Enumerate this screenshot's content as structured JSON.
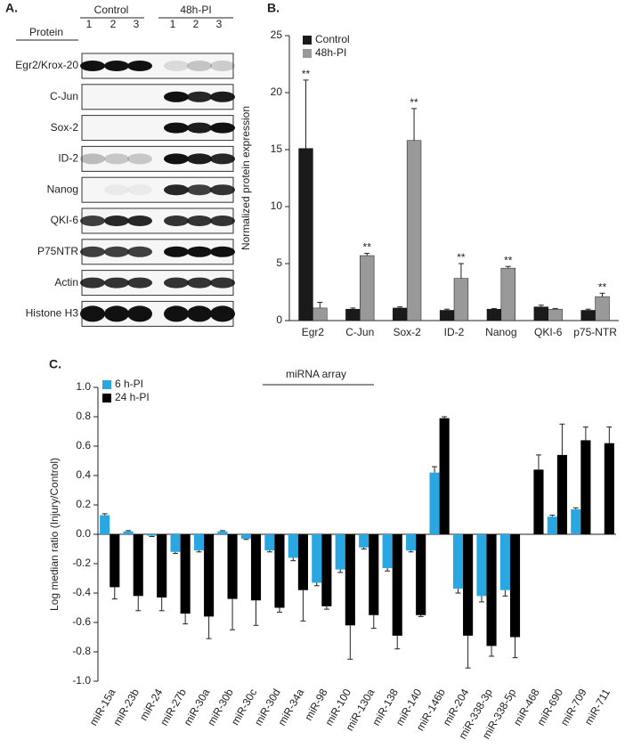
{
  "blot": {
    "panel_label": "A.",
    "groups": [
      "Control",
      "48h-PI"
    ],
    "protein_header": "Protein",
    "lanes": [
      "1",
      "2",
      "3",
      "1",
      "2",
      "3"
    ],
    "proteins": [
      "Egr2/Krox-20",
      "C-Jun",
      "Sox-2",
      "ID-2",
      "Nanog",
      "QKI-6",
      "P75NTR",
      "Actin",
      "Histone H3"
    ]
  },
  "chart_data": [
    {
      "type": "bar",
      "panel_label": "B.",
      "ylabel": "Normalized protein expression",
      "categories": [
        "Egr2",
        "C-Jun",
        "Sox-2",
        "ID-2",
        "Nanog",
        "QKI-6",
        "p75-NTR"
      ],
      "series": [
        {
          "name": "Control",
          "color": "#1a1a1a",
          "values": [
            15.1,
            1.0,
            1.1,
            0.9,
            1.0,
            1.2,
            0.9
          ],
          "errors": [
            6.0,
            0.1,
            0.1,
            0.1,
            0.05,
            0.15,
            0.1
          ],
          "significance": [
            "**",
            null,
            null,
            null,
            null,
            null,
            null
          ]
        },
        {
          "name": "48h-PI",
          "color": "#999999",
          "values": [
            1.1,
            5.7,
            15.8,
            3.7,
            4.6,
            1.0,
            2.1
          ],
          "errors": [
            0.5,
            0.2,
            2.8,
            1.3,
            0.15,
            0.05,
            0.3
          ],
          "significance": [
            null,
            "**",
            "**",
            "**",
            "**",
            null,
            "**"
          ]
        }
      ],
      "ylim": [
        0,
        25
      ],
      "yticks": [
        0,
        5,
        10,
        15,
        20,
        25
      ],
      "legend": "upper left"
    },
    {
      "type": "bar",
      "panel_label": "C.",
      "title": "miRNA array",
      "ylabel": "Log median ratio (Injury/Control)",
      "categories": [
        "miR-15a",
        "miR-23b",
        "miR-24",
        "miR-27b",
        "miR-30a",
        "miR-30b",
        "miR-30c",
        "miR-30d",
        "miR-34a",
        "miR-98",
        "miR-100",
        "miR-130a",
        "miR-138",
        "miR-140",
        "miR-146b",
        "miR-204",
        "miR-338-3p",
        "miR-338-5p",
        "miR-468",
        "miR-690",
        "miR-709",
        "miR-711"
      ],
      "series": [
        {
          "name": "6 h-PI",
          "color": "#2aa7e0",
          "values": [
            0.13,
            0.02,
            -0.01,
            -0.12,
            -0.11,
            0.02,
            -0.03,
            -0.11,
            -0.16,
            -0.33,
            -0.24,
            -0.09,
            -0.23,
            -0.11,
            0.42,
            -0.37,
            -0.42,
            -0.38,
            null,
            0.12,
            0.17,
            null
          ],
          "errors": [
            0.01,
            0.005,
            0.005,
            0.01,
            0.01,
            0.005,
            0.005,
            0.01,
            0.02,
            0.02,
            0.02,
            0.01,
            0.02,
            0.01,
            0.04,
            0.03,
            0.04,
            0.04,
            null,
            0.01,
            0.01,
            null
          ]
        },
        {
          "name": "24 h-PI",
          "color": "#000000",
          "values": [
            -0.36,
            -0.42,
            -0.43,
            -0.54,
            -0.56,
            -0.44,
            -0.45,
            -0.5,
            -0.38,
            -0.49,
            -0.62,
            -0.55,
            -0.69,
            -0.55,
            0.79,
            -0.69,
            -0.76,
            -0.7,
            0.44,
            0.54,
            0.64,
            0.62
          ],
          "errors": [
            0.08,
            0.1,
            0.09,
            0.07,
            0.15,
            0.21,
            0.17,
            0.03,
            0.21,
            0.02,
            0.23,
            0.09,
            0.09,
            0.01,
            0.01,
            0.22,
            0.07,
            0.14,
            0.1,
            0.21,
            0.09,
            0.11
          ]
        }
      ],
      "ylim": [
        -1,
        1
      ],
      "yticks": [
        {
          "value": -1,
          "label": "-1.0"
        },
        {
          "value": -0.8,
          "label": "-0.8"
        },
        {
          "value": -0.6,
          "label": "-0.6"
        },
        {
          "value": -0.4,
          "label": "-0.4"
        },
        {
          "value": -0.2,
          "label": "-0.2"
        },
        {
          "value": 0,
          "label": "0.0"
        },
        {
          "value": 0.2,
          "label": "0.2"
        },
        {
          "value": 0.4,
          "label": "0.4"
        },
        {
          "value": 0.6,
          "label": "0.6"
        },
        {
          "value": 0.8,
          "label": "0.8"
        },
        {
          "value": 1,
          "label": "1.0"
        }
      ],
      "legend": "upper left"
    }
  ]
}
